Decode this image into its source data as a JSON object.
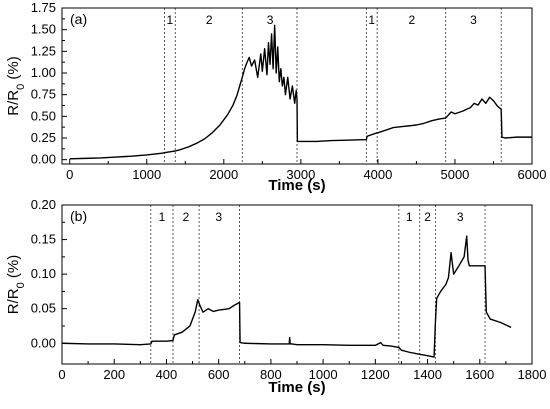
{
  "chart_data": [
    {
      "type": "line",
      "panel_label": "(a)",
      "xlabel": "Time (s)",
      "ylabel": "R/R",
      "ylabel_sub": "0",
      "ylabel_suffix": " (%)",
      "xlim": [
        -100,
        6000
      ],
      "ylim": [
        -0.05,
        1.75
      ],
      "xticks": [
        0,
        1000,
        2000,
        3000,
        4000,
        5000,
        6000
      ],
      "yticks": [
        0.0,
        0.25,
        0.5,
        0.75,
        1.0,
        1.25,
        1.5,
        1.75
      ],
      "ytick_labels": [
        "0.00",
        "0.25",
        "0.50",
        "0.75",
        "1.00",
        "1.25",
        "1.50",
        "1.75"
      ],
      "vlines": [
        1230,
        1370,
        2240,
        2950,
        3850,
        3990,
        4880,
        5600
      ],
      "regions": [
        {
          "label": "1",
          "x": 1300
        },
        {
          "label": "2",
          "x": 1810
        },
        {
          "label": "3",
          "x": 2600
        },
        {
          "label": "1",
          "x": 3920
        },
        {
          "label": "2",
          "x": 4440
        },
        {
          "label": "3",
          "x": 5240
        }
      ],
      "series": [
        {
          "x": [
            0,
            200,
            400,
            600,
            800,
            1000,
            1100,
            1200,
            1230,
            1300,
            1370,
            1450,
            1550,
            1650,
            1750,
            1850,
            1950,
            2050,
            2120,
            2170,
            2210,
            2240,
            2270,
            2300,
            2330,
            2360,
            2400,
            2440,
            2480,
            2500,
            2530,
            2560,
            2580,
            2600,
            2620,
            2640,
            2660,
            2680,
            2700,
            2720,
            2740,
            2760,
            2780,
            2800,
            2830,
            2860,
            2890,
            2920,
            2940,
            2950,
            2955,
            3000,
            3200,
            3400,
            3600,
            3800,
            3850,
            3860,
            3990,
            4000,
            4100,
            4200,
            4300,
            4400,
            4500,
            4600,
            4700,
            4800,
            4880,
            4900,
            4950,
            5000,
            5100,
            5200,
            5250,
            5300,
            5350,
            5400,
            5450,
            5500,
            5550,
            5600,
            5610,
            5650,
            5800,
            6000
          ],
          "y": [
            0.01,
            0.015,
            0.02,
            0.03,
            0.04,
            0.055,
            0.065,
            0.075,
            0.08,
            0.09,
            0.1,
            0.12,
            0.15,
            0.19,
            0.24,
            0.31,
            0.4,
            0.52,
            0.63,
            0.74,
            0.86,
            0.95,
            1.05,
            1.12,
            1.18,
            1.08,
            1.15,
            0.95,
            1.22,
            1.02,
            1.28,
            0.98,
            1.35,
            1.1,
            1.45,
            1.05,
            1.55,
            1.0,
            1.3,
            0.9,
            1.05,
            0.85,
            0.95,
            0.75,
            0.95,
            0.7,
            0.85,
            0.65,
            0.8,
            0.7,
            0.21,
            0.21,
            0.21,
            0.22,
            0.225,
            0.23,
            0.23,
            0.27,
            0.31,
            0.31,
            0.34,
            0.37,
            0.38,
            0.39,
            0.4,
            0.42,
            0.45,
            0.47,
            0.48,
            0.5,
            0.55,
            0.53,
            0.56,
            0.6,
            0.65,
            0.63,
            0.7,
            0.65,
            0.72,
            0.68,
            0.62,
            0.58,
            0.26,
            0.25,
            0.26,
            0.26
          ]
        }
      ]
    },
    {
      "type": "line",
      "panel_label": "(b)",
      "xlabel": "Time (s)",
      "ylabel": "R/R",
      "ylabel_sub": "0",
      "ylabel_suffix": " (%)",
      "xlim": [
        0,
        1800
      ],
      "ylim": [
        -0.03,
        0.2
      ],
      "xticks": [
        0,
        200,
        400,
        600,
        800,
        1000,
        1200,
        1400,
        1600,
        1800
      ],
      "yticks": [
        0.0,
        0.05,
        0.1,
        0.15,
        0.2
      ],
      "ytick_labels": [
        "0.00",
        "0.05",
        "0.10",
        "0.15",
        "0.20"
      ],
      "vlines": [
        340,
        425,
        525,
        680,
        1290,
        1370,
        1430,
        1620
      ],
      "regions": [
        {
          "label": "1",
          "x": 383
        },
        {
          "label": "2",
          "x": 475
        },
        {
          "label": "3",
          "x": 600
        },
        {
          "label": "1",
          "x": 1330
        },
        {
          "label": "2",
          "x": 1400
        },
        {
          "label": "3",
          "x": 1525
        }
      ],
      "series": [
        {
          "x": [
            0,
            100,
            200,
            300,
            340,
            345,
            400,
            425,
            430,
            460,
            490,
            510,
            520,
            528,
            540,
            560,
            580,
            600,
            620,
            640,
            660,
            675,
            680,
            682,
            700,
            800,
            870,
            872,
            874,
            880,
            900,
            1000,
            1100,
            1200,
            1220,
            1230,
            1260,
            1290,
            1300,
            1330,
            1370,
            1400,
            1425,
            1430,
            1435,
            1450,
            1470,
            1480,
            1490,
            1500,
            1520,
            1540,
            1550,
            1555,
            1560,
            1580,
            1600,
            1620,
            1625,
            1640,
            1680,
            1720
          ],
          "y": [
            0.0,
            -0.001,
            -0.001,
            -0.002,
            -0.001,
            0.003,
            0.003,
            0.004,
            0.012,
            0.016,
            0.025,
            0.045,
            0.063,
            0.055,
            0.045,
            0.05,
            0.046,
            0.048,
            0.049,
            0.05,
            0.055,
            0.058,
            0.059,
            0.001,
            0.0,
            -0.001,
            -0.001,
            0.008,
            -0.001,
            -0.001,
            -0.002,
            -0.002,
            -0.003,
            -0.003,
            0.001,
            -0.003,
            -0.004,
            -0.006,
            -0.01,
            -0.013,
            -0.016,
            -0.018,
            -0.02,
            0.03,
            0.065,
            0.075,
            0.085,
            0.095,
            0.131,
            0.1,
            0.112,
            0.125,
            0.155,
            0.12,
            0.112,
            0.112,
            0.112,
            0.112,
            0.045,
            0.035,
            0.03,
            0.023
          ]
        }
      ]
    }
  ]
}
